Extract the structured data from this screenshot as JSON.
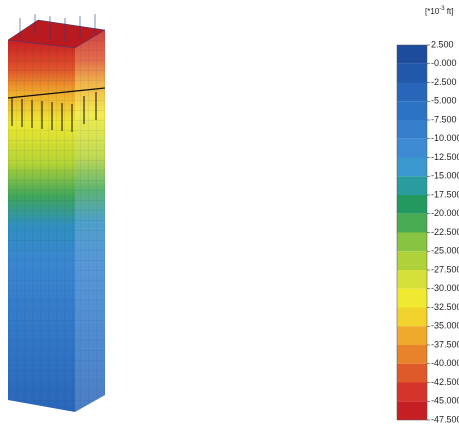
{
  "legend": {
    "unit": {
      "base": "[*10",
      "exponent": "-3",
      "suffix": " ft]"
    },
    "labels": [
      "2.500",
      "-0.000",
      "-2.500",
      "-5.000",
      "-7.500",
      "-10.000",
      "-12.500",
      "-15.000",
      "-17.500",
      "-20.000",
      "-22.500",
      "-25.000",
      "-27.500",
      "-30.000",
      "-32.500",
      "-35.000",
      "-37.500",
      "-40.000",
      "-42.500",
      "-45.000",
      "-47.500"
    ],
    "colors": [
      "#1d4c9c",
      "#2158aa",
      "#2766b8",
      "#2c73c4",
      "#357fcc",
      "#3e8bd3",
      "#3b98cf",
      "#2a9b9e",
      "#23995f",
      "#49ab52",
      "#86c442",
      "#afd23a",
      "#d5e03a",
      "#f0e932",
      "#f2d22c",
      "#efa92c",
      "#e8832b",
      "#df5a2b",
      "#d5342a",
      "#c61f23"
    ]
  }
}
